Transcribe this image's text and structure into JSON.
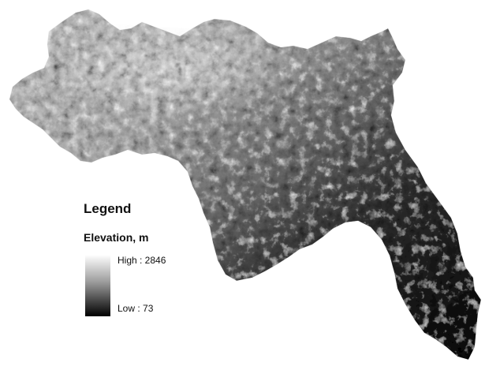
{
  "legend": {
    "title": "Legend",
    "subtitle": "Elevation, m",
    "high_label": "High : 2846",
    "low_label": "Low : 73",
    "high_color": "#ffffff",
    "low_color": "#000000"
  }
}
